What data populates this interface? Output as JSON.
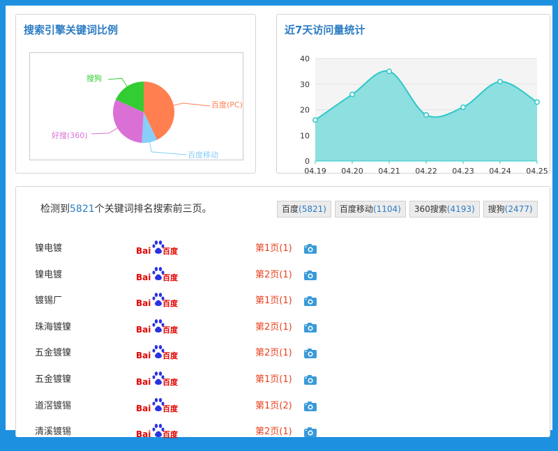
{
  "pie_panel": {
    "title": "搜索引擎关键词比例"
  },
  "line_panel": {
    "title": "近7天访问量统计"
  },
  "chart_data": [
    {
      "type": "pie",
      "title": "",
      "labels": [
        "百度(PC)",
        "百度移动",
        "好搜(360)",
        "搜狗"
      ],
      "values": [
        5821,
        1104,
        4193,
        2477
      ],
      "colors": [
        "#ff7f50",
        "#87cefa",
        "#da70d6",
        "#32cd32"
      ]
    },
    {
      "type": "area",
      "title": "",
      "categories": [
        "04.19",
        "04.20",
        "04.21",
        "04.22",
        "04.23",
        "04.24",
        "04.25"
      ],
      "values": [
        16,
        26,
        35,
        18,
        21,
        31,
        23
      ],
      "ylim": [
        0,
        40
      ],
      "yticks": [
        0,
        10,
        20,
        30,
        40
      ],
      "color": "#2ec7c9",
      "fill": "#8ddfe0"
    }
  ],
  "summary": {
    "prefix": "检测到",
    "count": "5821",
    "suffix": "个关键词排名搜索前三页。"
  },
  "tabs": [
    {
      "label": "百度",
      "count": "(5821)"
    },
    {
      "label": "百度移动",
      "count": "(1104)"
    },
    {
      "label": "360搜索",
      "count": "(4193)"
    },
    {
      "label": "搜狗",
      "count": "(2477)"
    }
  ],
  "baidu_logo": {
    "text_bai": "Bai",
    "text_du": "百度"
  },
  "rows": [
    {
      "keyword": "镍电镀",
      "rank": "第1页(1)"
    },
    {
      "keyword": "镍电镀",
      "rank": "第2页(1)"
    },
    {
      "keyword": "镀锡厂",
      "rank": "第1页(1)"
    },
    {
      "keyword": "珠海镀镍",
      "rank": "第2页(1)"
    },
    {
      "keyword": "五金镀镍",
      "rank": "第2页(1)"
    },
    {
      "keyword": "五金镀镍",
      "rank": "第1页(1)"
    },
    {
      "keyword": "道滘镀锡",
      "rank": "第1页(2)"
    },
    {
      "keyword": "清溪镀锡",
      "rank": "第2页(1)"
    }
  ]
}
